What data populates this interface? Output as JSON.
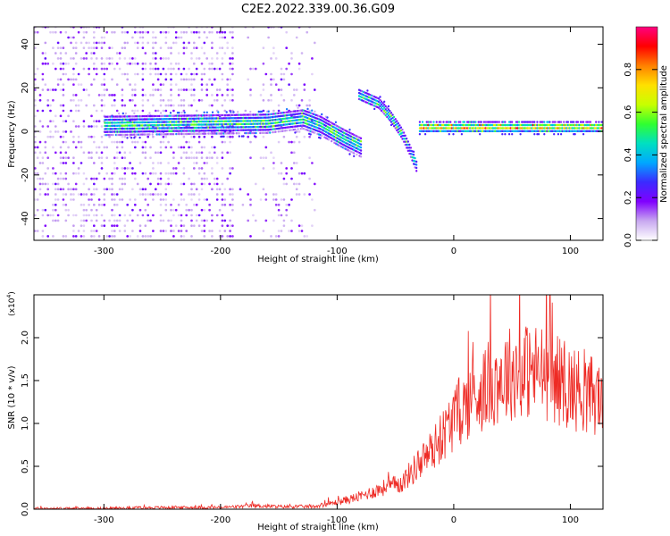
{
  "title": "C2E2.2022.339.00.36.G09",
  "chart_data": [
    {
      "type": "heatmap",
      "xlabel": "Height of straight line (km)",
      "ylabel": "Frequency (Hz)",
      "xlim": [
        -360,
        128
      ],
      "ylim": [
        -50,
        48
      ],
      "xticks": [
        -300,
        -200,
        -100,
        0,
        100
      ],
      "yticks": [
        -40,
        -20,
        0,
        20,
        40
      ],
      "colorbar": {
        "label": "Normalized spectral amplitude",
        "range": [
          0,
          1
        ],
        "ticks": [
          "0.0",
          "0.2",
          "0.4",
          "0.6",
          "0.8"
        ],
        "colors": [
          "#ffffff",
          "#c8a8f0",
          "#8000ff",
          "#3b2bff",
          "#00a8ff",
          "#00e0c0",
          "#30ff30",
          "#c8ff00",
          "#ffe000",
          "#ff8000",
          "#ff0000",
          "#ff0080"
        ]
      },
      "structures": [
        {
          "name": "main band",
          "x": [
            -300,
            -160,
            -130,
            -115,
            -95,
            -80
          ],
          "y": [
            2,
            3,
            5,
            2,
            -4,
            -8
          ]
        },
        {
          "name": "upper branch",
          "x": [
            -82,
            -65,
            -55,
            -45,
            -38,
            -32
          ],
          "y": [
            16,
            12,
            6,
            -2,
            -10,
            -18
          ]
        },
        {
          "name": "right band",
          "x": [
            -30,
            128
          ],
          "y": [
            1,
            1
          ]
        }
      ]
    },
    {
      "type": "line",
      "xlabel": "Height of straight line (km)",
      "ylabel": "SNR (10 * v/v)",
      "yscale_label": "(x10",
      "yscale_exp": "4",
      "scale_close": ")",
      "xlim": [
        -360,
        128
      ],
      "ylim": [
        0,
        2.5
      ],
      "xticks": [
        -300,
        -200,
        -100,
        0,
        100
      ],
      "yticks": [
        "0.0",
        "0.5",
        "1.0",
        "1.5",
        "2.0"
      ],
      "series": [
        {
          "color": "#ee2a24",
          "x": [
            -360,
            -300,
            -250,
            -200,
            -170,
            -150,
            -120,
            -100,
            -80,
            -60,
            -45,
            -35,
            -25,
            -15,
            -5,
            5,
            20,
            35,
            50,
            65,
            75,
            85,
            95,
            105,
            115,
            128
          ],
          "y": [
            0.01,
            0.01,
            0.02,
            0.02,
            0.04,
            0.03,
            0.03,
            0.08,
            0.15,
            0.25,
            0.3,
            0.45,
            0.6,
            0.75,
            0.95,
            1.15,
            1.35,
            1.5,
            1.6,
            1.62,
            1.6,
            1.55,
            1.45,
            1.4,
            1.35,
            1.3
          ]
        }
      ]
    }
  ]
}
